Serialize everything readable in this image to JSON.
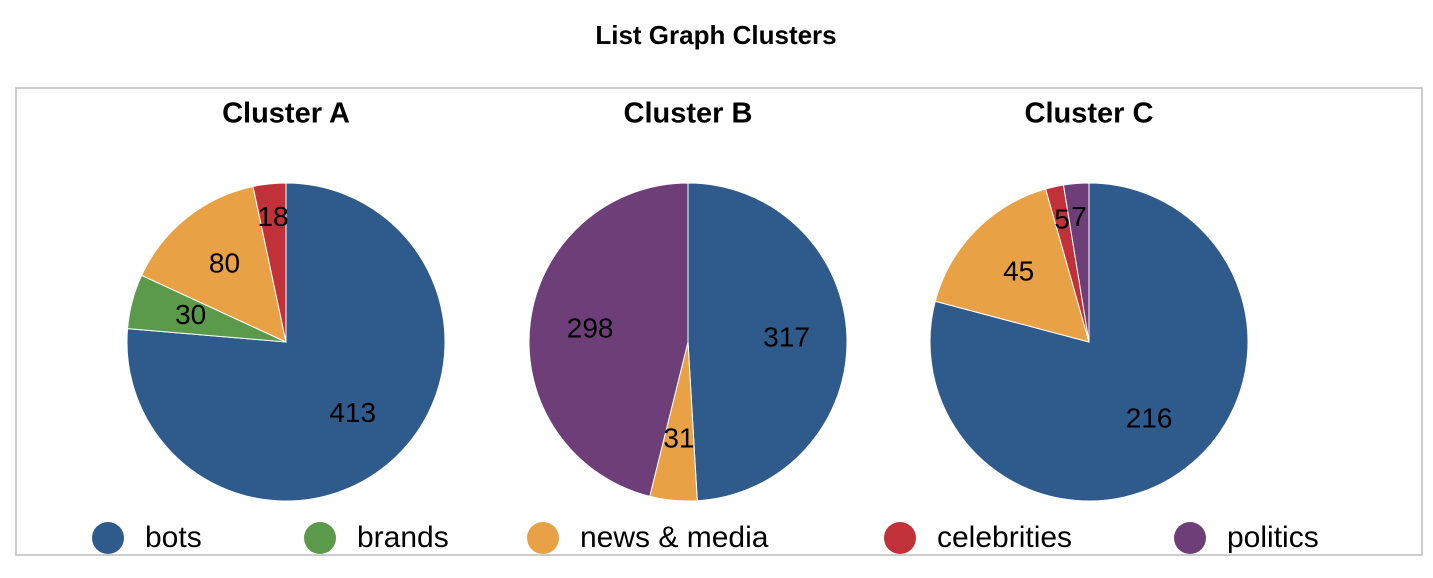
{
  "title": "List Graph Clusters",
  "legend": {
    "names": [
      "bots",
      "brands",
      "news & media",
      "celebrities",
      "politics"
    ],
    "colors": [
      "#2f5a8c",
      "#5b9a4a",
      "#e8a144",
      "#c0313a",
      "#6e3e78"
    ]
  },
  "chart_data": [
    {
      "type": "pie",
      "title": "Cluster A",
      "categories": [
        "bots",
        "brands",
        "news & media",
        "celebrities"
      ],
      "values": [
        413,
        30,
        80,
        18
      ]
    },
    {
      "type": "pie",
      "title": "Cluster B",
      "categories": [
        "bots",
        "news & media",
        "politics"
      ],
      "values": [
        317,
        31,
        298
      ]
    },
    {
      "type": "pie",
      "title": "Cluster C",
      "categories": [
        "bots",
        "news & media",
        "celebrities",
        "politics"
      ],
      "values": [
        216,
        45,
        5,
        7
      ]
    }
  ]
}
